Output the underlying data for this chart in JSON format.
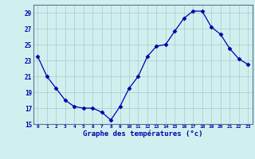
{
  "hours": [
    0,
    1,
    2,
    3,
    4,
    5,
    6,
    7,
    8,
    9,
    10,
    11,
    12,
    13,
    14,
    15,
    16,
    17,
    18,
    19,
    20,
    21,
    22,
    23
  ],
  "temperatures": [
    23.5,
    21.0,
    19.5,
    18.0,
    17.2,
    17.0,
    17.0,
    16.5,
    15.5,
    17.2,
    19.5,
    21.0,
    23.5,
    24.8,
    25.0,
    26.7,
    28.3,
    29.2,
    29.2,
    27.2,
    26.3,
    24.5,
    23.2,
    22.5
  ],
  "line_color": "#0000aa",
  "marker": "D",
  "marker_size": 2.5,
  "background_color": "#d0f0f0",
  "grid_color": "#b0d0d0",
  "xlabel": "Graphe des températures (°c)",
  "xlabel_color": "#0000aa",
  "tick_color": "#0000aa",
  "ylim": [
    15,
    30
  ],
  "yticks": [
    15,
    17,
    19,
    21,
    23,
    25,
    27,
    29
  ],
  "xlim": [
    -0.5,
    23.5
  ],
  "xticks": [
    0,
    1,
    2,
    3,
    4,
    5,
    6,
    7,
    8,
    9,
    10,
    11,
    12,
    13,
    14,
    15,
    16,
    17,
    18,
    19,
    20,
    21,
    22,
    23
  ]
}
